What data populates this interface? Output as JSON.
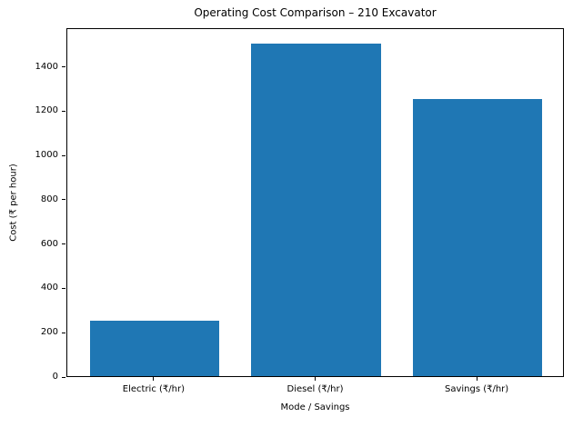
{
  "chart_data": {
    "type": "bar",
    "title": "Operating Cost Comparison – 210 Excavator",
    "xlabel": "Mode / Savings",
    "ylabel": "Cost (₹ per hour)",
    "categories": [
      "Electric (₹/hr)",
      "Diesel (₹/hr)",
      "Savings (₹/hr)"
    ],
    "values": [
      250,
      1500,
      1250
    ],
    "ylim": [
      0,
      1575
    ],
    "yticks": [
      0,
      200,
      400,
      600,
      800,
      1000,
      1200,
      1400
    ],
    "bar_color": "#1f77b4",
    "grid": false,
    "legend": "none"
  }
}
